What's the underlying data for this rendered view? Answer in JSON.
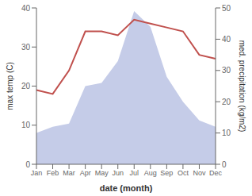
{
  "chart_data": {
    "type": "line",
    "xlabel": "date (month)",
    "ylabel": "max temp (C)",
    "y2label": "med. precipitation (kg/m2)",
    "categories": [
      "Jan",
      "Feb",
      "Mar",
      "Apr",
      "May",
      "Jun",
      "Jul",
      "Aug",
      "Sep",
      "Oct",
      "Nov",
      "Dec"
    ],
    "series": [
      {
        "type": "area",
        "color": "#c5cce8",
        "axis": "y2",
        "values": [
          10,
          12,
          13,
          25,
          26,
          33,
          49,
          44,
          28,
          20,
          14,
          12
        ]
      },
      {
        "type": "line",
        "color": "#c0504d",
        "values": [
          19,
          18,
          24,
          34,
          34,
          33,
          37,
          36,
          35,
          34,
          28,
          27
        ]
      }
    ],
    "ylim": [
      0,
      40
    ],
    "yticks": [
      0,
      10,
      20,
      30,
      40
    ],
    "y2lim": [
      0,
      50
    ],
    "y2ticks": [
      0,
      10,
      20,
      30,
      40,
      50
    ],
    "grid": false
  }
}
